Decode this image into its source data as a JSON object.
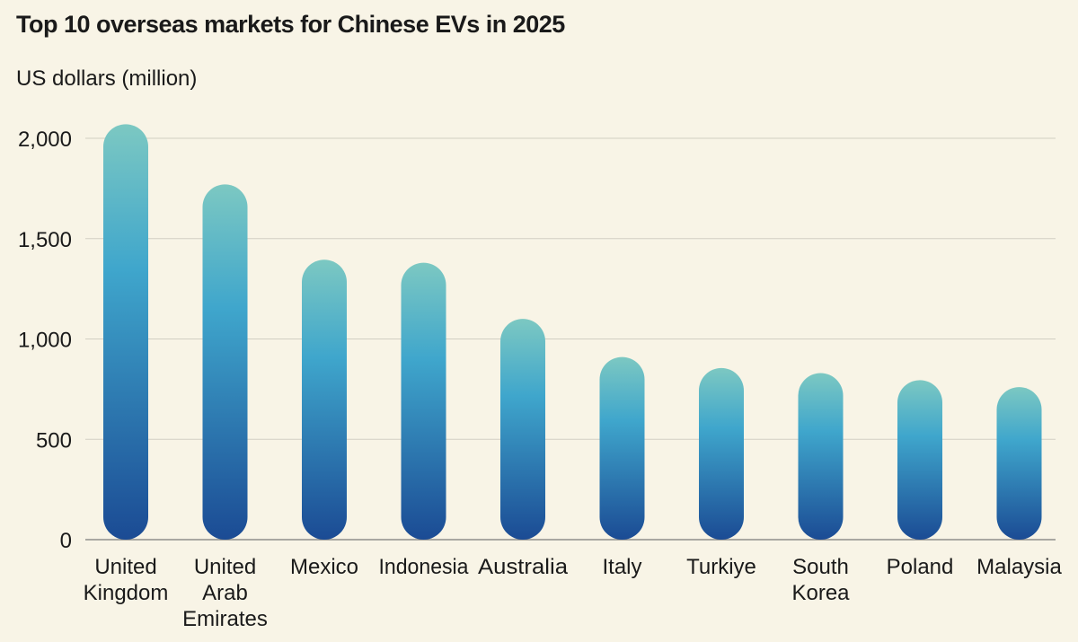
{
  "chart_data": {
    "type": "bar",
    "title": "Top 10 overseas markets for Chinese EVs in 2025",
    "ylabel": "US dollars (million)",
    "xlabel": "",
    "categories": [
      [
        "United",
        "Kingdom"
      ],
      [
        "United",
        "Arab",
        "Emirates"
      ],
      [
        "Mexico"
      ],
      [
        "Indonesia"
      ],
      [
        "Australia"
      ],
      [
        "Italy"
      ],
      [
        "Turkiye"
      ],
      [
        "South",
        "Korea"
      ],
      [
        "Poland"
      ],
      [
        "Malaysia"
      ]
    ],
    "values": [
      2070,
      1770,
      1395,
      1380,
      1100,
      910,
      855,
      830,
      795,
      760
    ],
    "ylim": [
      0,
      2000
    ],
    "yticks": [
      0,
      500,
      1000,
      1500,
      2000
    ],
    "ytick_labels": [
      "0",
      "500",
      "1,000",
      "1,500",
      "2,000"
    ],
    "grid": true,
    "colors": {
      "bar_top": "#7cc8c2",
      "bar_mid": "#3fa6cc",
      "bar_bottom": "#1b4b94",
      "grid": "#d2cfc3",
      "axis": "#7a7a7a",
      "background": "#f8f4e6"
    }
  }
}
